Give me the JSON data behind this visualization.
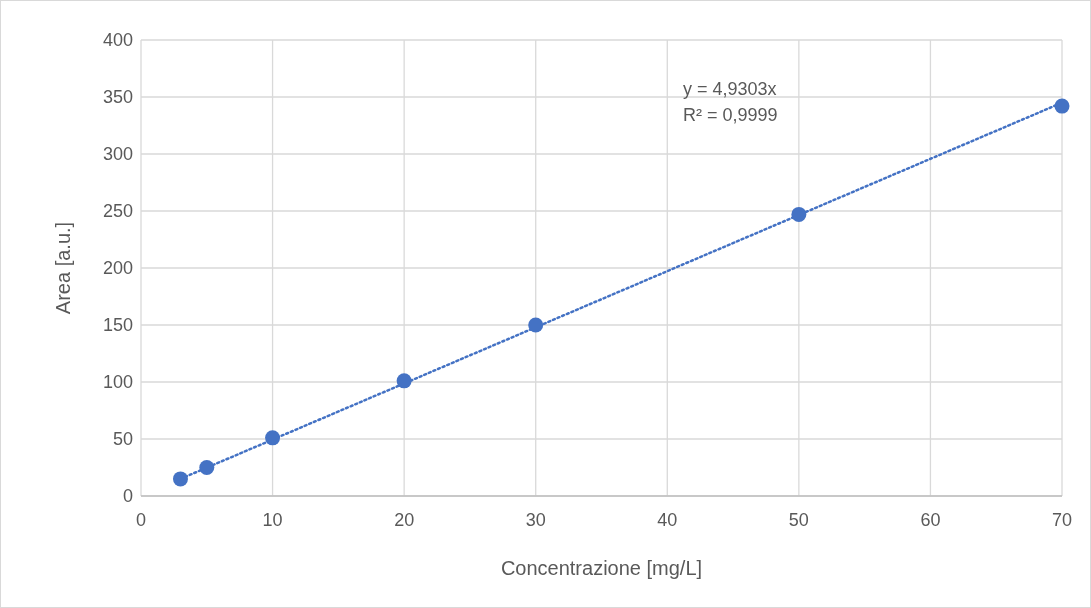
{
  "chart_data": {
    "type": "scatter",
    "xlabel": "Concentrazione [mg/L]",
    "ylabel": "Area [a.u.]",
    "annotations": [
      "y = 4,9303x",
      "R² = 0,9999"
    ],
    "xlim": [
      0,
      70
    ],
    "xticks": [
      0,
      10,
      20,
      30,
      40,
      50,
      60,
      70
    ],
    "ylim": [
      0,
      400
    ],
    "yticks": [
      0,
      50,
      100,
      150,
      200,
      250,
      300,
      350,
      400
    ],
    "grid": true,
    "series": [
      {
        "color": "#4472c4",
        "marker": "circle",
        "x": [
          3,
          5,
          10,
          20,
          30,
          50,
          70
        ],
        "values": [
          15,
          25,
          51,
          101,
          150,
          247,
          342
        ]
      },
      {
        "type": "line",
        "color": "#4472c4",
        "marker": "none",
        "line_style": "dotted",
        "x": [
          3,
          70
        ],
        "values": [
          15,
          345
        ]
      }
    ]
  }
}
